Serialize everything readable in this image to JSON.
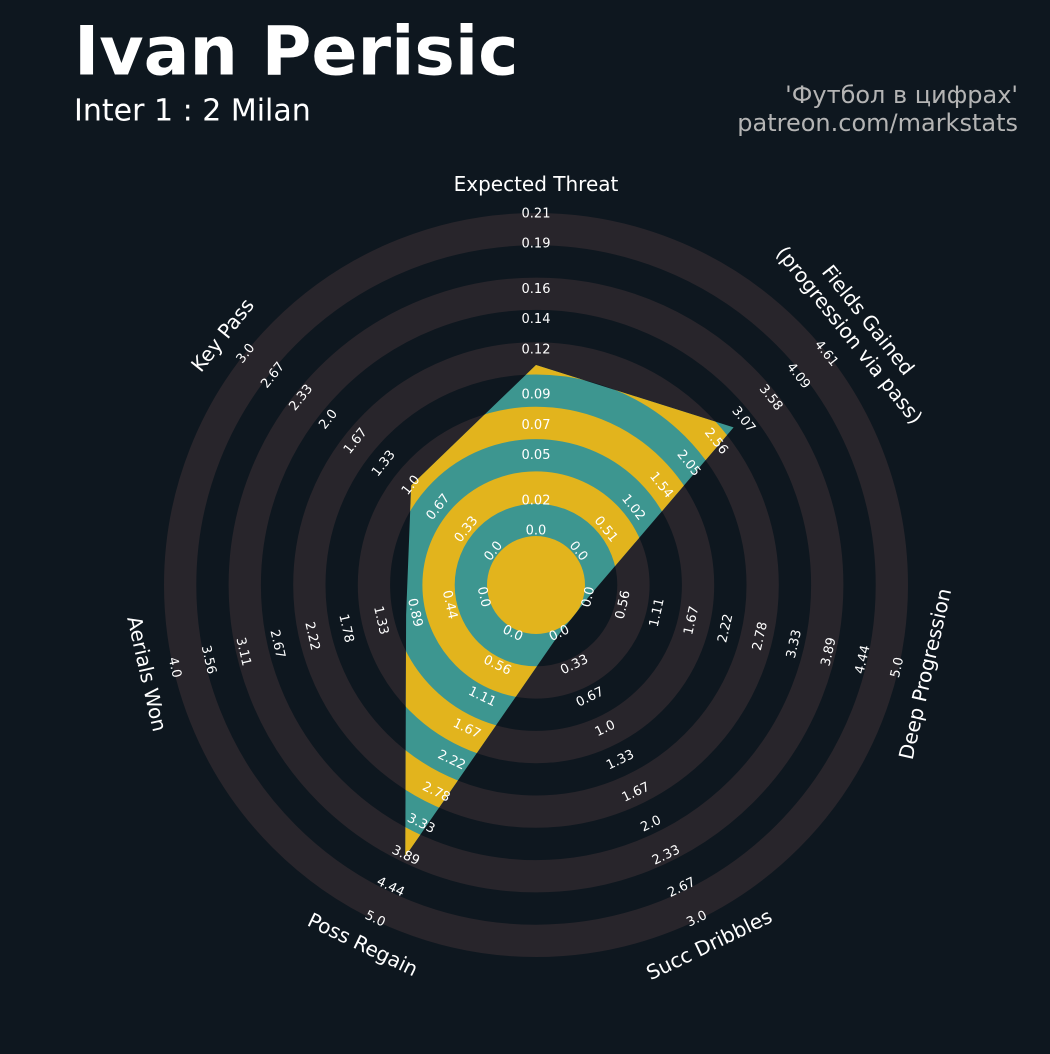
{
  "chart_data": {
    "type": "radar",
    "title": "Ivan Perisic",
    "subtitle": "Inter 1 : 2 Milan",
    "credits": [
      "'Футбол в цифрах'",
      "patreon.com/markstats"
    ],
    "params": [
      "Expected Threat",
      "Fields Gained\n(progression via pass)",
      "Deep Progression",
      "Succ Dribbles",
      "Poss Regain",
      "Aerials Won",
      "Key Pass"
    ],
    "lims": [
      [
        0,
        0.21
      ],
      [
        0,
        4.61
      ],
      [
        0,
        5
      ],
      [
        0,
        3
      ],
      [
        0,
        5
      ],
      [
        0,
        4
      ],
      [
        0,
        3
      ]
    ],
    "ticks": [
      [
        {
          "value": 0,
          "label": "0.0"
        },
        0.02,
        0.05,
        0.07,
        0.09,
        0.12,
        0.14,
        0.16,
        0.19,
        0.21
      ],
      [
        {
          "value": 0,
          "label": "0.0"
        },
        0.51,
        1.02,
        1.54,
        2.05,
        2.56,
        3.07,
        3.58,
        4.09,
        4.61
      ],
      [
        {
          "value": 0,
          "label": "0.0"
        },
        0.56,
        1.11,
        1.67,
        2.22,
        2.78,
        3.33,
        3.89,
        4.44,
        {
          "value": 5,
          "label": "5.0"
        }
      ],
      [
        {
          "value": 0,
          "label": "0.0"
        },
        0.33,
        0.67,
        {
          "value": 1,
          "label": "1.0"
        },
        1.33,
        1.67,
        {
          "value": 2,
          "label": "2.0"
        },
        2.33,
        2.67,
        {
          "value": 3,
          "label": "3.0"
        }
      ],
      [
        {
          "value": 0,
          "label": "0.0"
        },
        0.56,
        1.11,
        1.67,
        2.22,
        2.78,
        3.33,
        3.89,
        4.44,
        {
          "value": 5,
          "label": "5.0"
        }
      ],
      [
        {
          "value": 0,
          "label": "0.0"
        },
        0.44,
        0.89,
        1.33,
        1.78,
        2.22,
        2.67,
        3.11,
        3.56,
        {
          "value": 4,
          "label": "4.0"
        }
      ],
      [
        {
          "value": 0,
          "label": "0.0"
        },
        0.33,
        0.67,
        {
          "value": 1,
          "label": "1.0"
        },
        1.33,
        1.67,
        {
          "value": 2,
          "label": "2.0"
        },
        2.33,
        2.67,
        {
          "value": 3,
          "label": "3.0"
        }
      ]
    ],
    "values": [
      0.11,
      2.89,
      0,
      0,
      3.9,
      1.0,
      1.0
    ],
    "colors": {
      "background": "#0e171f",
      "rings": "#28252b",
      "fill": "#3d9690",
      "alt_fill": "#e2b41d"
    }
  }
}
